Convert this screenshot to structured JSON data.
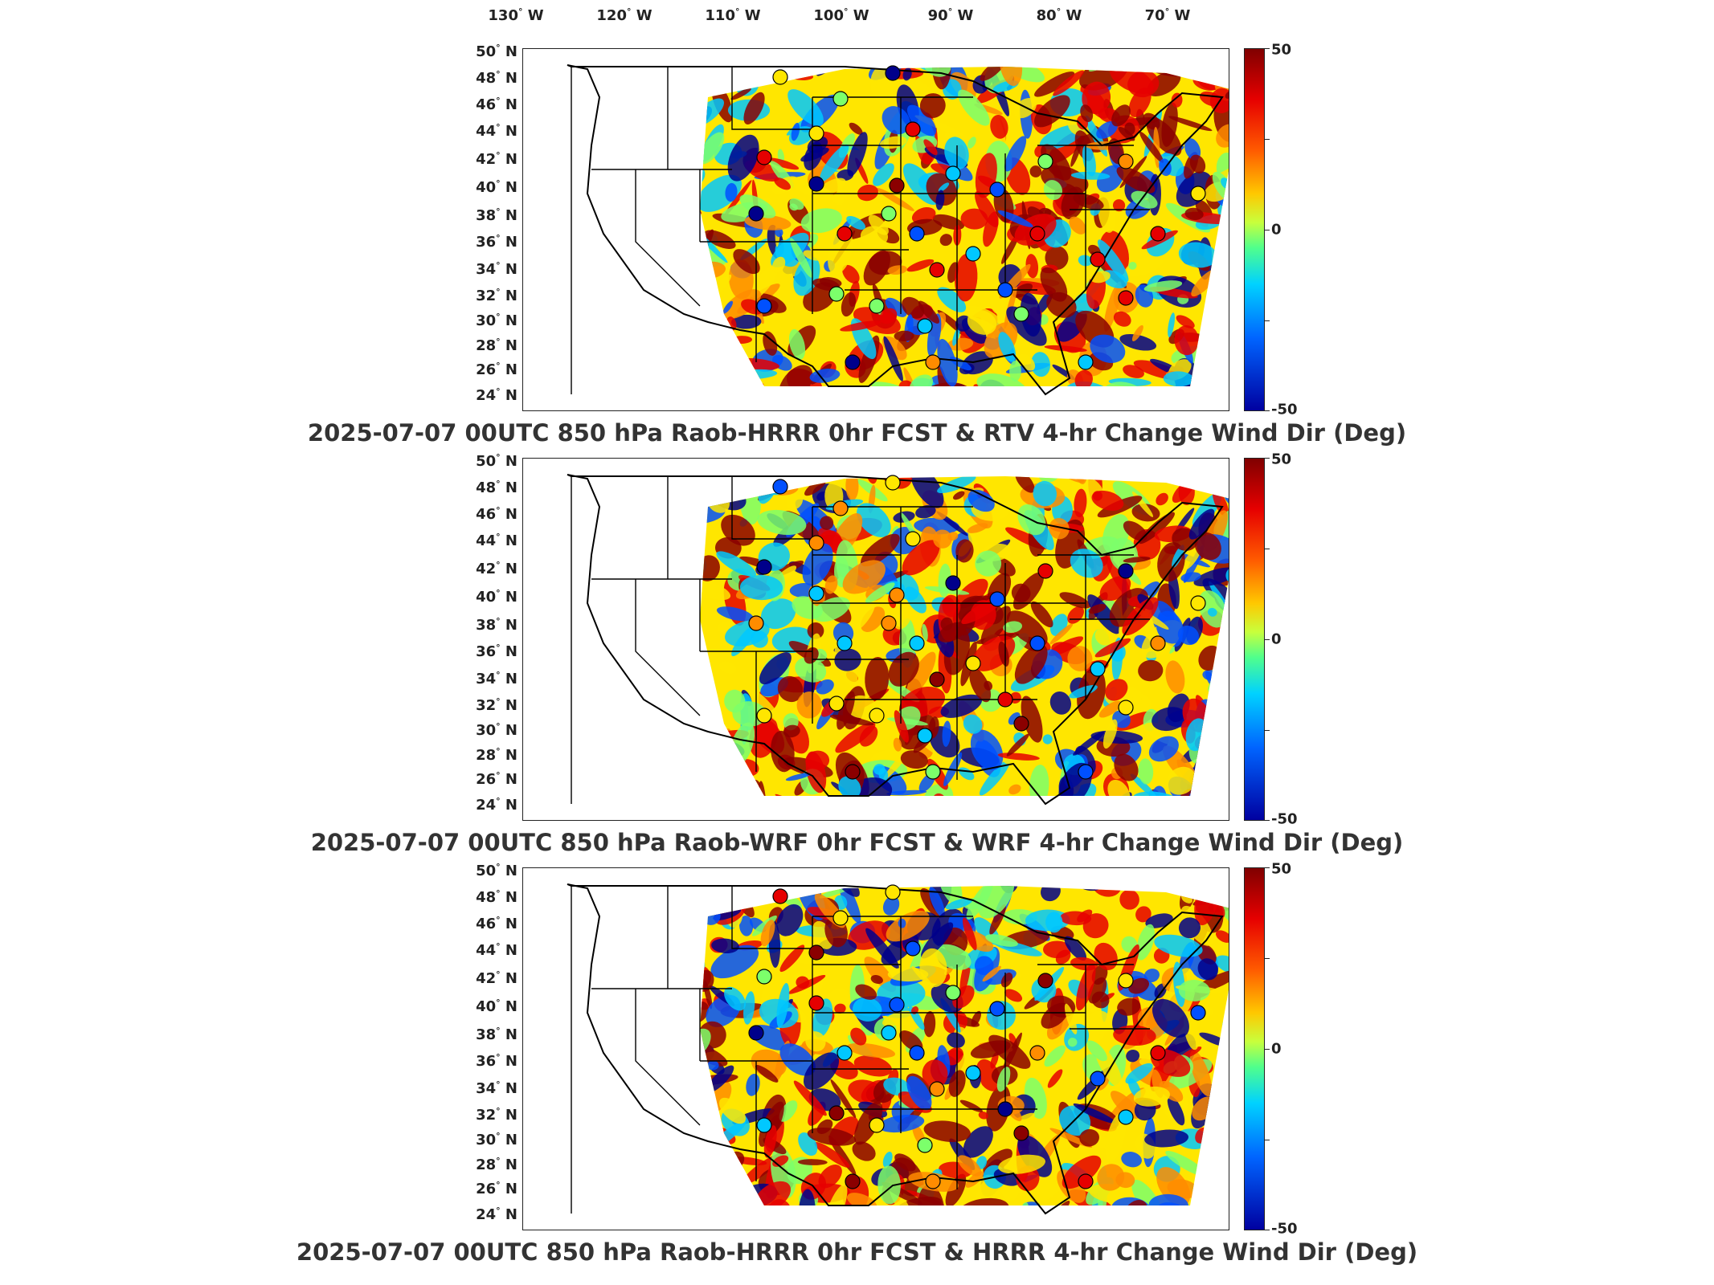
{
  "lon_ticks": [
    {
      "value": "130",
      "hemi": "W"
    },
    {
      "value": "120",
      "hemi": "W"
    },
    {
      "value": "110",
      "hemi": "W"
    },
    {
      "value": "100",
      "hemi": "W"
    },
    {
      "value": "90",
      "hemi": "W"
    },
    {
      "value": "80",
      "hemi": "W"
    },
    {
      "value": "70",
      "hemi": "W"
    }
  ],
  "lat_ticks": [
    "50",
    "48",
    "46",
    "44",
    "42",
    "40",
    "38",
    "36",
    "34",
    "32",
    "30",
    "28",
    "26",
    "24"
  ],
  "lat_hemi": "N",
  "degree_symbol": "°",
  "colorbar": {
    "max": "50",
    "mid": "0",
    "min": "-50"
  },
  "panels": [
    {
      "title": "2025-07-07 00UTC 850 hPa Raob-HRRR 0hr FCST & RTV 4-hr Change Wind Dir (Deg)"
    },
    {
      "title": "2025-07-07 00UTC 850 hPa Raob-WRF 0hr FCST & WRF 4-hr Change Wind Dir (Deg)"
    },
    {
      "title": "2025-07-07 00UTC 850 hPa Raob-HRRR 0hr FCST & HRRR 4-hr Change Wind Dir (Deg)"
    }
  ],
  "colors": {
    "dark_red": "#8b0000",
    "red": "#e60000",
    "orange": "#ff8c00",
    "yellow": "#ffe600",
    "green": "#7cff6b",
    "cyan": "#00c8ff",
    "blue": "#0050ff",
    "navy": "#00008b"
  }
}
